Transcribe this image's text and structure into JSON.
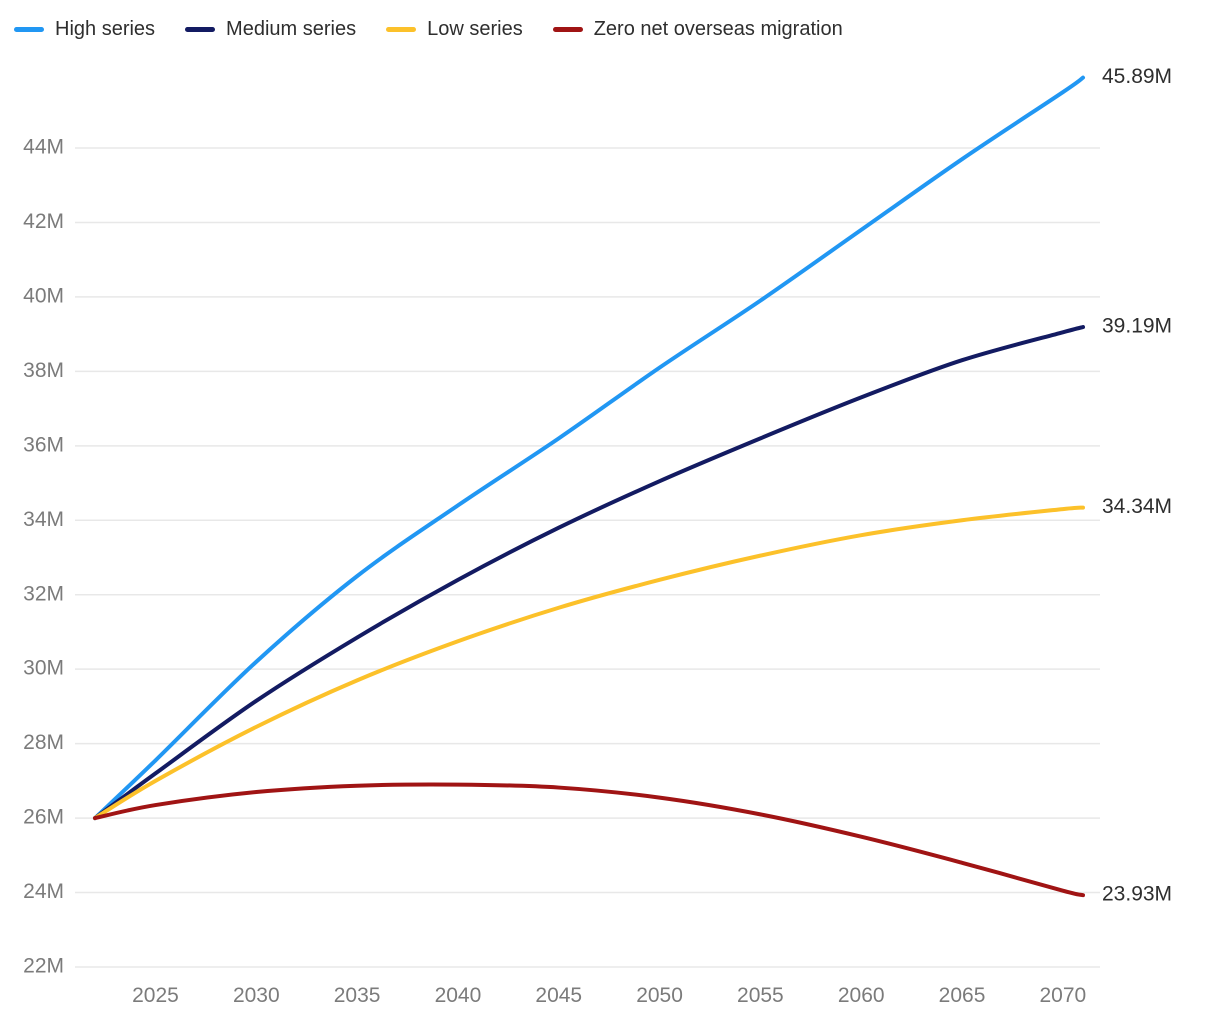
{
  "chart_data": {
    "type": "line",
    "title": "",
    "xlabel": "",
    "ylabel": "",
    "xlim": [
      2022,
      2071
    ],
    "ylim": [
      22,
      44
    ],
    "grid": "horizontal",
    "legend_position": "top-left",
    "x": [
      2022,
      2025,
      2030,
      2035,
      2040,
      2045,
      2050,
      2055,
      2060,
      2065,
      2070,
      2071
    ],
    "xticks": [
      {
        "value": 2025,
        "label": "2025"
      },
      {
        "value": 2030,
        "label": "2030"
      },
      {
        "value": 2035,
        "label": "2035"
      },
      {
        "value": 2040,
        "label": "2040"
      },
      {
        "value": 2045,
        "label": "2045"
      },
      {
        "value": 2050,
        "label": "2050"
      },
      {
        "value": 2055,
        "label": "2055"
      },
      {
        "value": 2060,
        "label": "2060"
      },
      {
        "value": 2065,
        "label": "2065"
      },
      {
        "value": 2070,
        "label": "2070"
      }
    ],
    "yticks": [
      {
        "value": 22,
        "label": "22M"
      },
      {
        "value": 24,
        "label": "24M"
      },
      {
        "value": 26,
        "label": "26M"
      },
      {
        "value": 28,
        "label": "28M"
      },
      {
        "value": 30,
        "label": "30M"
      },
      {
        "value": 32,
        "label": "32M"
      },
      {
        "value": 34,
        "label": "34M"
      },
      {
        "value": 36,
        "label": "36M"
      },
      {
        "value": 38,
        "label": "38M"
      },
      {
        "value": 40,
        "label": "40M"
      },
      {
        "value": 42,
        "label": "42M"
      },
      {
        "value": 44,
        "label": "44M"
      }
    ],
    "series": [
      {
        "name": "High series",
        "color": "#2197f3",
        "end_label": "45.89M",
        "end_value": 45.89,
        "values": [
          26.0,
          27.55,
          30.2,
          32.5,
          34.4,
          36.2,
          38.1,
          39.9,
          41.8,
          43.7,
          45.5,
          45.89
        ]
      },
      {
        "name": "Medium series",
        "color": "#131b62",
        "end_label": "39.19M",
        "end_value": 39.19,
        "values": [
          26.0,
          27.2,
          29.15,
          30.85,
          32.4,
          33.8,
          35.05,
          36.2,
          37.3,
          38.3,
          39.05,
          39.19
        ]
      },
      {
        "name": "Low series",
        "color": "#fcc12a",
        "end_label": "34.34M",
        "end_value": 34.34,
        "values": [
          26.0,
          27.0,
          28.45,
          29.7,
          30.75,
          31.65,
          32.4,
          33.05,
          33.6,
          34.0,
          34.3,
          34.34
        ]
      },
      {
        "name": "Zero net overseas migration",
        "color": "#a01414",
        "end_label": "23.93M",
        "end_value": 23.93,
        "values": [
          26.0,
          26.35,
          26.7,
          26.87,
          26.9,
          26.82,
          26.55,
          26.1,
          25.5,
          24.8,
          24.05,
          23.93
        ]
      }
    ]
  },
  "colors": {
    "grid": "#e8e8e8",
    "tick_text": "#7b7b7b",
    "end_label_text": "#2e2e2e",
    "legend_text": "#2e2e2e",
    "background": "#ffffff"
  }
}
